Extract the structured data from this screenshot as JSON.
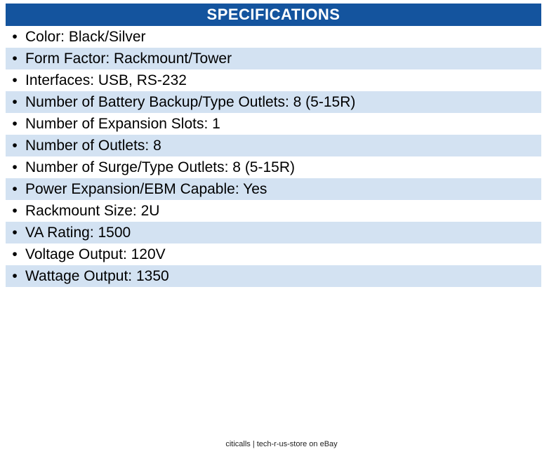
{
  "table": {
    "title": "SPECIFICATIONS",
    "bullet_icon": "•",
    "colors": {
      "header_bg": "#14549e",
      "header_text": "#ffffff",
      "row_bg": "#ffffff",
      "row_alt_bg": "#d3e2f2",
      "row_text": "#000000"
    },
    "rows": [
      "Color: Black/Silver",
      "Form Factor: Rackmount/Tower",
      "Interfaces: USB, RS-232",
      "Number of Battery Backup/Type Outlets: 8 (5-15R)",
      "Number of Expansion Slots: 1",
      "Number of Outlets: 8",
      "Number of Surge/Type Outlets: 8 (5-15R)",
      "Power Expansion/EBM Capable: Yes",
      "Rackmount Size: 2U",
      "VA Rating: 1500",
      "Voltage Output: 120V",
      "Wattage Output: 1350"
    ]
  },
  "footer": {
    "text": "citicalls | tech-r-us-store on eBay"
  }
}
